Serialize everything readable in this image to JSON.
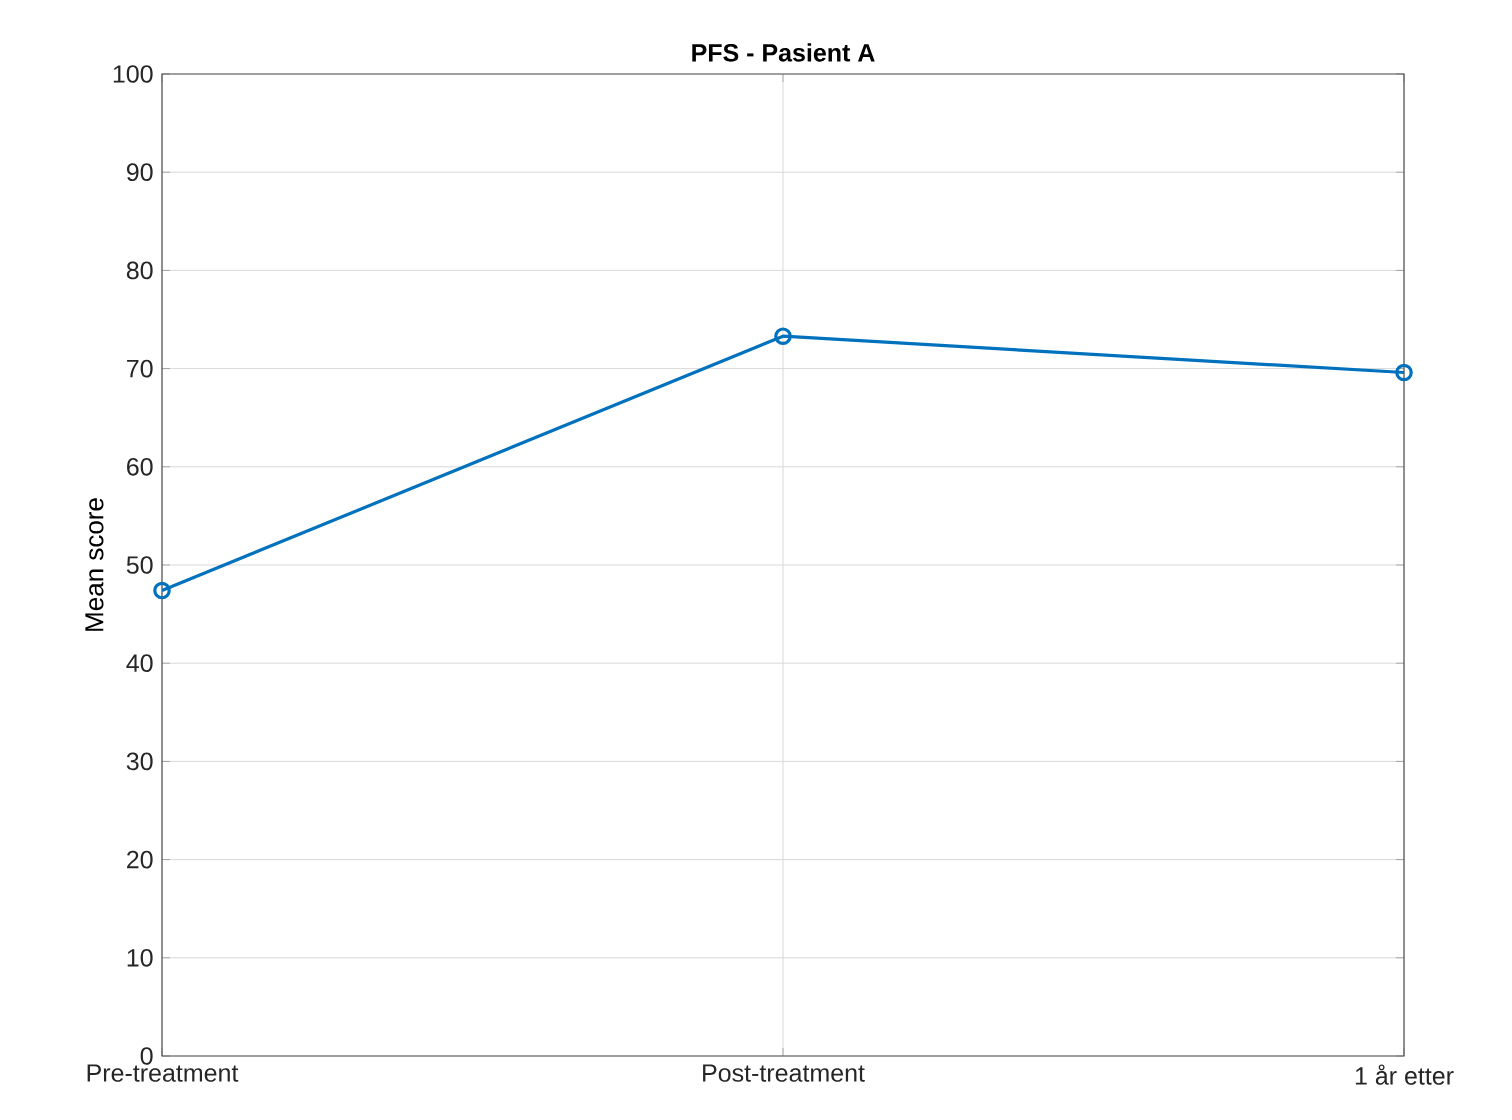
{
  "chart_data": {
    "type": "line",
    "title": "PFS - Pasient A",
    "ylabel": "Mean score",
    "categories": [
      "Pre-treatment",
      "Post-treatment",
      "1 år etter"
    ],
    "series": [
      {
        "color": "#0072bd",
        "values": [
          47.4,
          73.3,
          69.6
        ]
      }
    ],
    "ylim": [
      0,
      100
    ],
    "yticks": [
      0,
      10,
      20,
      30,
      40,
      50,
      60,
      70,
      80,
      90,
      100
    ],
    "grid": true,
    "marker": "circle",
    "line_style": "solid"
  }
}
